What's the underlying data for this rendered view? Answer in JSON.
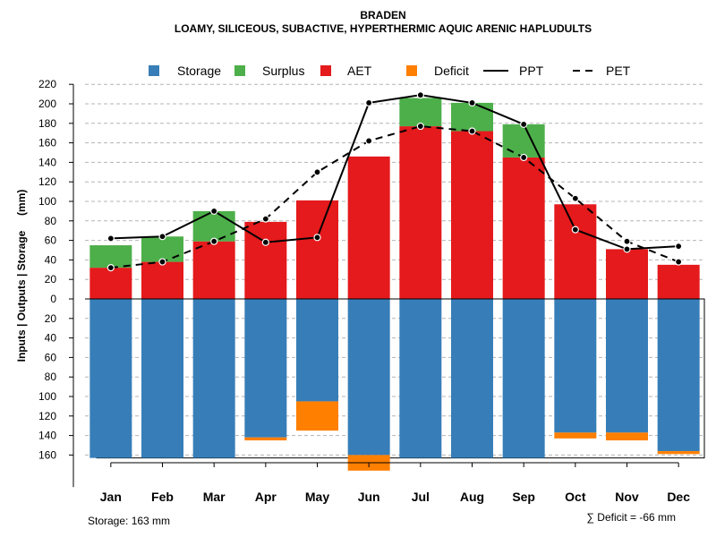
{
  "chart_data": {
    "type": "bar",
    "title": "BRADEN",
    "subtitle": "LOAMY, SILICEOUS, SUBACTIVE, HYPERTHERMIC AQUIC ARENIC HAPLUDULTS",
    "ylabel": "Inputs | Outputs | Storage     (mm)",
    "ylim": [
      -180,
      220
    ],
    "y_tick_values": [
      220,
      200,
      180,
      160,
      140,
      120,
      100,
      80,
      60,
      40,
      20,
      0,
      -20,
      -40,
      -60,
      -80,
      -100,
      -120,
      -140,
      -160
    ],
    "y_tick_labels": [
      "220",
      "200",
      "180",
      "160",
      "140",
      "120",
      "100",
      "80",
      "60",
      "40",
      "20",
      "0",
      "20",
      "40",
      "60",
      "80",
      "100",
      "120",
      "140",
      "160"
    ],
    "categories": [
      "Jan",
      "Feb",
      "Mar",
      "Apr",
      "May",
      "Jun",
      "Jul",
      "Aug",
      "Sep",
      "Oct",
      "Nov",
      "Dec"
    ],
    "legend": {
      "placement": "top",
      "items": [
        {
          "label": "Storage",
          "kind": "box",
          "color": "#377eb8"
        },
        {
          "label": "Surplus",
          "kind": "box",
          "color": "#4daf4a"
        },
        {
          "label": "AET",
          "kind": "box",
          "color": "#e41a1c"
        },
        {
          "label": "Deficit",
          "kind": "box",
          "color": "#ff7f00"
        },
        {
          "label": "PPT",
          "kind": "solid-line",
          "color": "#000000"
        },
        {
          "label": "PET",
          "kind": "dashed-line",
          "color": "#000000"
        }
      ]
    },
    "colors": {
      "storage": "#377eb8",
      "surplus": "#4daf4a",
      "aet": "#e41a1c",
      "deficit": "#ff7f00",
      "line": "#000000",
      "grid": "#b4b4b4"
    },
    "series": [
      {
        "name": "AET",
        "values": [
          32,
          38,
          59,
          79,
          101,
          146,
          177,
          172,
          145,
          97,
          51,
          35
        ]
      },
      {
        "name": "Surplus",
        "values": [
          23,
          26,
          31,
          0,
          0,
          0,
          29,
          29,
          34,
          0,
          0,
          0
        ]
      },
      {
        "name": "Storage",
        "values": [
          163,
          163,
          163,
          142,
          105,
          160,
          163,
          163,
          163,
          137,
          137,
          156
        ]
      },
      {
        "name": "Deficit",
        "values": [
          0,
          0,
          0,
          -3,
          -30,
          -16,
          0,
          0,
          0,
          -6,
          -8,
          -3
        ]
      },
      {
        "name": "PPT",
        "values": [
          62,
          64,
          90,
          58,
          63,
          201,
          209,
          201,
          179,
          71,
          51,
          54
        ]
      },
      {
        "name": "PET",
        "values": [
          32,
          38,
          59,
          82,
          130,
          162,
          177,
          172,
          145,
          103,
          59,
          38
        ]
      }
    ],
    "storage_capacity": 163,
    "grid": true
  },
  "footer": {
    "storage_label": "Storage: 163 mm",
    "deficit_label": "∑ Deficit = -66 mm"
  }
}
